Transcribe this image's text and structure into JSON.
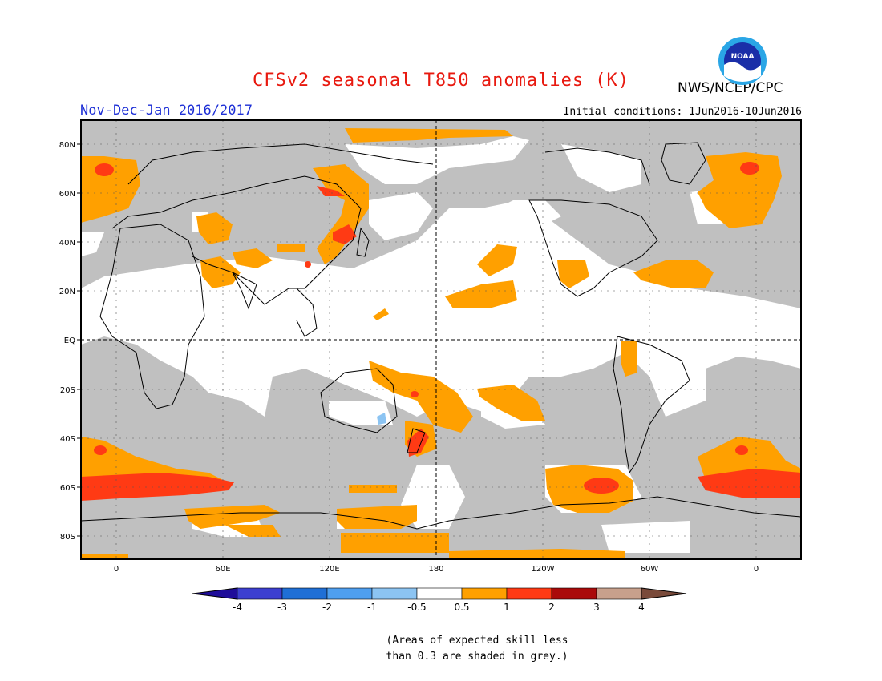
{
  "header": {
    "title": "CFSv2 seasonal T850 anomalies (K)",
    "period": "Nov-Dec-Jan 2016/2017",
    "initial_conditions": "Initial conditions: 1Jun2016-10Jun2016",
    "agency": "NWS/NCEP/CPC",
    "logo_text": "NOAA"
  },
  "map": {
    "lat_labels": [
      "80N",
      "60N",
      "40N",
      "20N",
      "EQ",
      "20S",
      "40S",
      "60S",
      "80S"
    ],
    "lon_labels": [
      "0",
      "60E",
      "120E",
      "180",
      "120W",
      "60W",
      "0"
    ],
    "background_color": "#c0c0c0",
    "skill_mask_color": "#c0c0c0"
  },
  "colorbar": {
    "tick_labels": [
      "-4",
      "-3",
      "-2",
      "-1",
      "-0.5",
      "0.5",
      "1",
      "2",
      "3",
      "4"
    ],
    "colors": [
      "#1f0d9a",
      "#3c3fd0",
      "#1f6fd6",
      "#4e9ff0",
      "#8cc4f2",
      "#ffffff",
      "#ffa000",
      "#ff3a14",
      "#aa0a0a",
      "#c8a08c",
      "#7a4a3a"
    ]
  },
  "footnote": {
    "line1": "(Areas of expected skill less",
    "line2": "than 0.3 are shaded in grey.)"
  }
}
